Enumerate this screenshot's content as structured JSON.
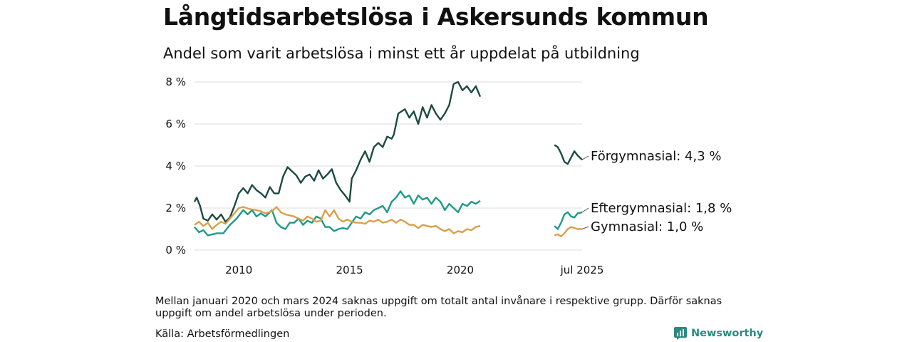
{
  "title": "Långtidsarbetslösa i Askersunds kommun",
  "subtitle": "Andel som varit arbetslösa i minst ett år uppdelat på utbildning",
  "note": "Mellan januari 2020 och mars 2024 saknas uppgift om totalt antal invånare i respektive grupp. Därför saknas uppgift om andel arbetslösa under perioden.",
  "source": "Källa: Arbetsförmedlingen",
  "brand": "Newsworthy",
  "colors": {
    "forgymnasial": "#1d4a42",
    "eftergymnasial": "#1f9a87",
    "gymnasial": "#d9a04a",
    "grid": "#dddddd",
    "brand": "#2b8a80"
  },
  "chart_data": {
    "type": "line",
    "title": "Långtidsarbetslösa i Askersunds kommun",
    "subtitle": "Andel som varit arbetslösa i minst ett år uppdelat på utbildning",
    "y_ticks": [
      {
        "value": 0,
        "label": "0 %"
      },
      {
        "value": 2,
        "label": "2 %"
      },
      {
        "value": 4,
        "label": "4 %"
      },
      {
        "value": 6,
        "label": "6 %"
      },
      {
        "value": 8,
        "label": "8 %"
      }
    ],
    "x_ticks": [
      {
        "value": 2010,
        "label": "2010"
      },
      {
        "value": 2015,
        "label": "2015"
      },
      {
        "value": 2020,
        "label": "2020"
      },
      {
        "value": 2025.5,
        "label": "jul 2025"
      }
    ],
    "ylim": [
      0,
      8
    ],
    "xlim": [
      2008.0,
      2025.5
    ],
    "grid": true,
    "series": [
      {
        "name": "Förgymnasial",
        "end_label": "Förgymnasial: 4,3 %",
        "segments": [
          [
            [
              2008.0,
              2.3
            ],
            [
              2008.1,
              2.5
            ],
            [
              2008.25,
              2.1
            ],
            [
              2008.4,
              1.5
            ],
            [
              2008.6,
              1.4
            ],
            [
              2008.8,
              1.7
            ],
            [
              2009.0,
              1.45
            ],
            [
              2009.2,
              1.7
            ],
            [
              2009.4,
              1.35
            ],
            [
              2009.6,
              1.55
            ],
            [
              2009.8,
              2.1
            ],
            [
              2010.0,
              2.7
            ],
            [
              2010.2,
              2.95
            ],
            [
              2010.4,
              2.7
            ],
            [
              2010.6,
              3.1
            ],
            [
              2010.8,
              2.85
            ],
            [
              2011.0,
              2.7
            ],
            [
              2011.2,
              2.5
            ],
            [
              2011.4,
              3.0
            ],
            [
              2011.6,
              2.7
            ],
            [
              2011.8,
              2.7
            ],
            [
              2012.0,
              3.5
            ],
            [
              2012.2,
              3.95
            ],
            [
              2012.4,
              3.75
            ],
            [
              2012.6,
              3.55
            ],
            [
              2012.8,
              3.2
            ],
            [
              2013.0,
              3.5
            ],
            [
              2013.2,
              3.6
            ],
            [
              2013.4,
              3.3
            ],
            [
              2013.6,
              3.8
            ],
            [
              2013.8,
              3.4
            ],
            [
              2014.0,
              3.6
            ],
            [
              2014.2,
              3.85
            ],
            [
              2014.4,
              3.2
            ],
            [
              2014.6,
              2.85
            ],
            [
              2014.8,
              2.6
            ],
            [
              2015.0,
              2.3
            ],
            [
              2015.1,
              3.4
            ],
            [
              2015.3,
              3.8
            ],
            [
              2015.5,
              4.3
            ],
            [
              2015.7,
              4.7
            ],
            [
              2015.9,
              4.2
            ],
            [
              2016.1,
              4.9
            ],
            [
              2016.3,
              5.1
            ],
            [
              2016.5,
              4.9
            ],
            [
              2016.7,
              5.4
            ],
            [
              2016.9,
              5.3
            ],
            [
              2017.0,
              5.5
            ],
            [
              2017.2,
              6.5
            ],
            [
              2017.5,
              6.7
            ],
            [
              2017.7,
              6.3
            ],
            [
              2017.9,
              6.6
            ],
            [
              2018.1,
              6.0
            ],
            [
              2018.3,
              6.8
            ],
            [
              2018.5,
              6.3
            ],
            [
              2018.7,
              6.9
            ],
            [
              2018.9,
              6.5
            ],
            [
              2019.1,
              6.2
            ],
            [
              2019.3,
              6.5
            ],
            [
              2019.5,
              6.9
            ],
            [
              2019.7,
              7.9
            ],
            [
              2019.9,
              8.0
            ],
            [
              2020.1,
              7.6
            ],
            [
              2020.3,
              7.8
            ],
            [
              2020.5,
              7.5
            ],
            [
              2020.7,
              7.8
            ],
            [
              2020.9,
              7.3
            ]
          ],
          [
            [
              2024.25,
              5.0
            ],
            [
              2024.4,
              4.9
            ],
            [
              2024.55,
              4.6
            ],
            [
              2024.7,
              4.2
            ],
            [
              2024.85,
              4.1
            ],
            [
              2025.0,
              4.4
            ],
            [
              2025.15,
              4.7
            ],
            [
              2025.3,
              4.5
            ],
            [
              2025.5,
              4.3
            ]
          ]
        ]
      },
      {
        "name": "Eftergymnasial",
        "end_label": "Eftergymnasial: 1,8 %",
        "segments": [
          [
            [
              2008.0,
              1.1
            ],
            [
              2008.2,
              0.85
            ],
            [
              2008.4,
              0.95
            ],
            [
              2008.6,
              0.7
            ],
            [
              2008.8,
              0.75
            ],
            [
              2009.0,
              0.8
            ],
            [
              2009.3,
              0.8
            ],
            [
              2009.6,
              1.2
            ],
            [
              2009.9,
              1.5
            ],
            [
              2010.2,
              1.9
            ],
            [
              2010.4,
              1.7
            ],
            [
              2010.6,
              1.9
            ],
            [
              2010.8,
              1.6
            ],
            [
              2011.0,
              1.75
            ],
            [
              2011.2,
              1.6
            ],
            [
              2011.5,
              1.9
            ],
            [
              2011.7,
              1.3
            ],
            [
              2011.9,
              1.1
            ],
            [
              2012.1,
              1.0
            ],
            [
              2012.3,
              1.3
            ],
            [
              2012.5,
              1.3
            ],
            [
              2012.7,
              1.5
            ],
            [
              2012.9,
              1.2
            ],
            [
              2013.1,
              1.4
            ],
            [
              2013.3,
              1.3
            ],
            [
              2013.5,
              1.6
            ],
            [
              2013.7,
              1.5
            ],
            [
              2013.9,
              1.1
            ],
            [
              2014.1,
              1.1
            ],
            [
              2014.3,
              0.9
            ],
            [
              2014.5,
              1.0
            ],
            [
              2014.7,
              1.05
            ],
            [
              2014.9,
              1.0
            ],
            [
              2015.1,
              1.3
            ],
            [
              2015.3,
              1.6
            ],
            [
              2015.5,
              1.5
            ],
            [
              2015.7,
              1.8
            ],
            [
              2015.9,
              1.7
            ],
            [
              2016.1,
              1.9
            ],
            [
              2016.3,
              2.0
            ],
            [
              2016.5,
              2.1
            ],
            [
              2016.7,
              1.8
            ],
            [
              2016.9,
              2.3
            ],
            [
              2017.1,
              2.5
            ],
            [
              2017.3,
              2.8
            ],
            [
              2017.5,
              2.5
            ],
            [
              2017.7,
              2.6
            ],
            [
              2017.9,
              2.2
            ],
            [
              2018.1,
              2.6
            ],
            [
              2018.3,
              2.4
            ],
            [
              2018.5,
              2.5
            ],
            [
              2018.7,
              2.2
            ],
            [
              2018.9,
              2.5
            ],
            [
              2019.1,
              2.3
            ],
            [
              2019.3,
              1.9
            ],
            [
              2019.5,
              2.2
            ],
            [
              2019.7,
              2.0
            ],
            [
              2019.9,
              1.8
            ],
            [
              2020.1,
              2.2
            ],
            [
              2020.3,
              2.1
            ],
            [
              2020.5,
              2.3
            ],
            [
              2020.7,
              2.2
            ],
            [
              2020.9,
              2.35
            ]
          ],
          [
            [
              2024.25,
              1.15
            ],
            [
              2024.4,
              1.0
            ],
            [
              2024.55,
              1.3
            ],
            [
              2024.7,
              1.7
            ],
            [
              2024.85,
              1.8
            ],
            [
              2025.0,
              1.6
            ],
            [
              2025.15,
              1.55
            ],
            [
              2025.3,
              1.75
            ],
            [
              2025.5,
              1.8
            ]
          ]
        ]
      },
      {
        "name": "Gymnasial",
        "end_label": "Gymnasial: 1,0 %",
        "segments": [
          [
            [
              2008.0,
              1.2
            ],
            [
              2008.2,
              1.35
            ],
            [
              2008.4,
              1.15
            ],
            [
              2008.6,
              1.3
            ],
            [
              2008.8,
              1.0
            ],
            [
              2009.0,
              1.2
            ],
            [
              2009.2,
              1.35
            ],
            [
              2009.4,
              1.25
            ],
            [
              2009.6,
              1.5
            ],
            [
              2009.8,
              1.75
            ],
            [
              2010.0,
              2.0
            ],
            [
              2010.2,
              2.05
            ],
            [
              2010.5,
              1.95
            ],
            [
              2010.8,
              1.9
            ],
            [
              2011.0,
              1.85
            ],
            [
              2011.2,
              1.75
            ],
            [
              2011.5,
              1.85
            ],
            [
              2011.7,
              2.05
            ],
            [
              2011.9,
              1.8
            ],
            [
              2012.1,
              1.7
            ],
            [
              2012.3,
              1.65
            ],
            [
              2012.5,
              1.6
            ],
            [
              2012.7,
              1.5
            ],
            [
              2012.9,
              1.4
            ],
            [
              2013.1,
              1.6
            ],
            [
              2013.3,
              1.5
            ],
            [
              2013.5,
              1.35
            ],
            [
              2013.7,
              1.4
            ],
            [
              2013.9,
              1.9
            ],
            [
              2014.1,
              1.6
            ],
            [
              2014.3,
              1.9
            ],
            [
              2014.5,
              1.5
            ],
            [
              2014.7,
              1.35
            ],
            [
              2014.9,
              1.45
            ],
            [
              2015.1,
              1.35
            ],
            [
              2015.3,
              1.3
            ],
            [
              2015.5,
              1.3
            ],
            [
              2015.7,
              1.25
            ],
            [
              2015.9,
              1.4
            ],
            [
              2016.1,
              1.35
            ],
            [
              2016.3,
              1.45
            ],
            [
              2016.5,
              1.3
            ],
            [
              2016.7,
              1.35
            ],
            [
              2016.9,
              1.45
            ],
            [
              2017.1,
              1.3
            ],
            [
              2017.3,
              1.45
            ],
            [
              2017.5,
              1.35
            ],
            [
              2017.7,
              1.2
            ],
            [
              2017.9,
              1.2
            ],
            [
              2018.1,
              1.05
            ],
            [
              2018.3,
              1.2
            ],
            [
              2018.5,
              1.15
            ],
            [
              2018.7,
              1.1
            ],
            [
              2018.9,
              1.15
            ],
            [
              2019.1,
              1.0
            ],
            [
              2019.3,
              0.9
            ],
            [
              2019.5,
              1.0
            ],
            [
              2019.7,
              0.8
            ],
            [
              2019.9,
              0.9
            ],
            [
              2020.1,
              0.85
            ],
            [
              2020.3,
              1.0
            ],
            [
              2020.5,
              0.95
            ],
            [
              2020.7,
              1.1
            ],
            [
              2020.9,
              1.15
            ]
          ],
          [
            [
              2024.25,
              0.7
            ],
            [
              2024.4,
              0.75
            ],
            [
              2024.55,
              0.65
            ],
            [
              2024.7,
              0.8
            ],
            [
              2024.85,
              1.0
            ],
            [
              2025.0,
              1.1
            ],
            [
              2025.15,
              1.05
            ],
            [
              2025.3,
              1.0
            ],
            [
              2025.5,
              1.0
            ]
          ]
        ]
      }
    ]
  }
}
